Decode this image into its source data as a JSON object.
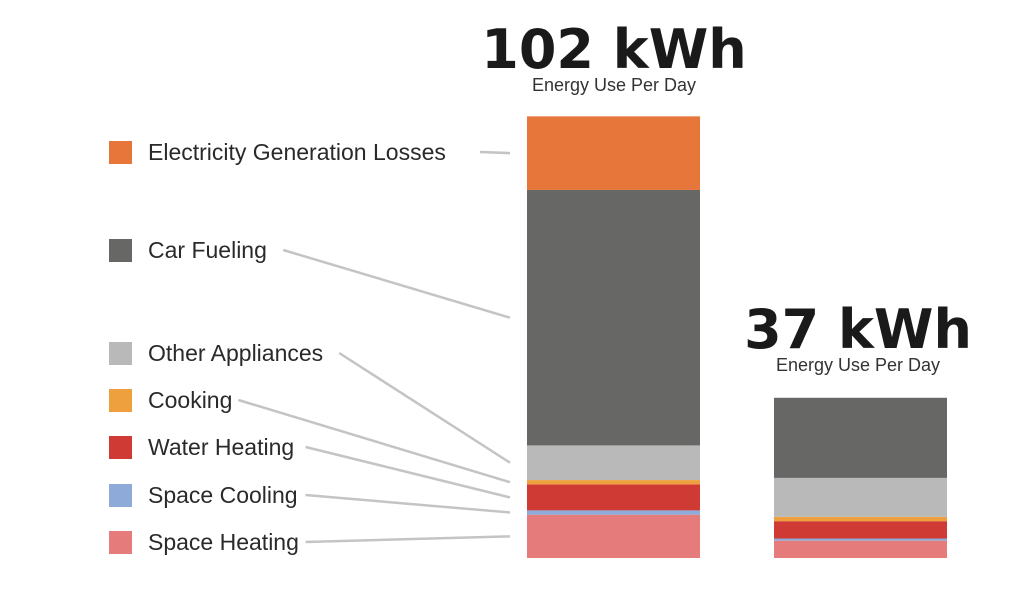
{
  "chart_data": {
    "type": "bar",
    "stacked": true,
    "unit": "kWh",
    "categories": [
      "",
      ""
    ],
    "totals": [
      {
        "value_label": "102 kWh",
        "subtitle": "Energy Use Per Day"
      },
      {
        "value_label": "37 kWh",
        "subtitle": "Energy Use Per Day"
      }
    ],
    "series": [
      {
        "name": "Space Heating",
        "color": "#e57b7b",
        "values": [
          10,
          4
        ]
      },
      {
        "name": "Space Cooling",
        "color": "#8eaad8",
        "values": [
          1,
          0.5
        ]
      },
      {
        "name": "Water Heating",
        "color": "#cf3a34",
        "values": [
          6,
          4
        ]
      },
      {
        "name": "Cooking",
        "color": "#eea03f",
        "values": [
          1,
          1
        ]
      },
      {
        "name": "Other Appliances",
        "color": "#b9b9b9",
        "values": [
          8,
          9
        ]
      },
      {
        "name": "Car Fueling",
        "color": "#676866",
        "values": [
          59,
          18.5
        ]
      },
      {
        "name": "Electricity Generation Losses",
        "color": "#e6763a",
        "values": [
          17,
          0
        ]
      }
    ],
    "legend_order": [
      "Electricity Generation Losses",
      "Car Fueling",
      "Other Appliances",
      "Cooking",
      "Water Heating",
      "Space Cooling",
      "Space Heating"
    ],
    "grid": false,
    "legend_position": "left"
  }
}
